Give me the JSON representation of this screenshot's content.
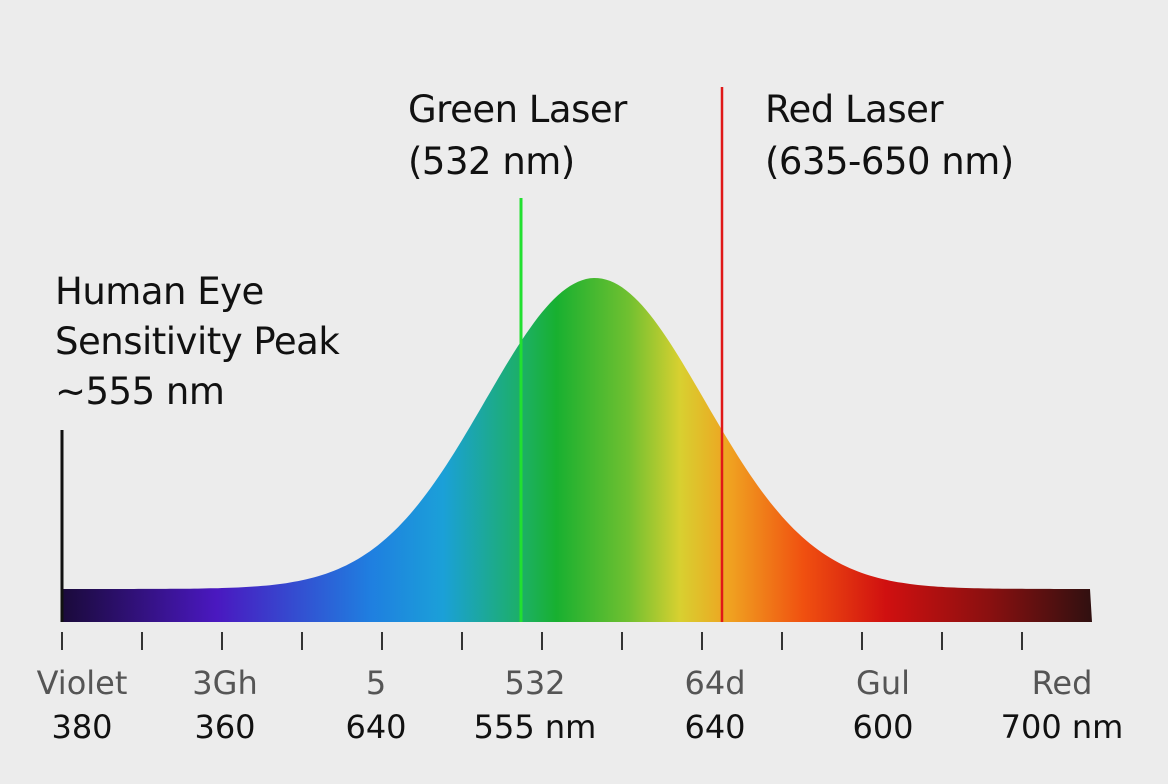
{
  "annotations": {
    "human_eye": [
      "Human Eye",
      "Sensitivity Peak",
      "~555 nm"
    ],
    "green_laser": [
      "Green Laser",
      "(532 nm)"
    ],
    "red_laser": [
      "Red Laser",
      "(635-650 nm)"
    ]
  },
  "axis_labels": [
    [
      "Violet",
      "380"
    ],
    [
      "3Gh",
      "360"
    ],
    [
      "5",
      "640"
    ],
    [
      "532",
      "555 nm"
    ],
    [
      "64d",
      "640"
    ],
    [
      "Gul",
      "600"
    ],
    [
      "Red",
      "700 nm"
    ]
  ]
}
